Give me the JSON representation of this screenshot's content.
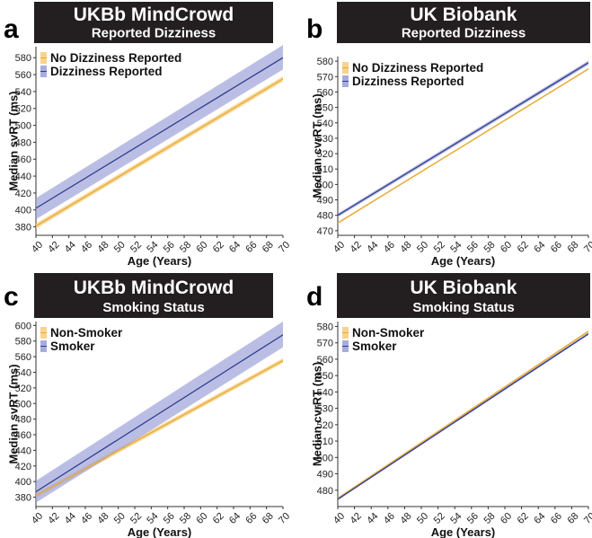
{
  "colors": {
    "yellow_band": "#f6cf7f",
    "yellow_line": "#e8a93a",
    "blue_band": "#9ea3d9",
    "blue_line": "#2f3f8f",
    "header_bg": "#231f20"
  },
  "chart_data": [
    {
      "panel": "a",
      "header_title": "UKBb MindCrowd",
      "header_subtitle": "Reported Dizziness",
      "type": "line",
      "xlabel": "Age (Years)",
      "ylabel": "Median svRT (ms)",
      "xlim": [
        40,
        70
      ],
      "ylim": [
        370,
        593
      ],
      "x_ticks": [
        40,
        42,
        44,
        46,
        48,
        50,
        52,
        54,
        56,
        58,
        60,
        62,
        64,
        66,
        68,
        70
      ],
      "y_ticks": [
        380,
        400,
        420,
        440,
        460,
        480,
        500,
        520,
        540,
        560,
        580
      ],
      "legend": [
        "No Dizziness Reported",
        "Dizziness Reported"
      ],
      "series": [
        {
          "name": "No Dizziness Reported",
          "x": [
            40,
            70
          ],
          "y": [
            381,
            555
          ],
          "lower": [
            378,
            552
          ],
          "upper": [
            384,
            558
          ]
        },
        {
          "name": "Dizziness Reported",
          "x": [
            40,
            70
          ],
          "y": [
            402,
            580
          ],
          "lower": [
            389,
            566
          ],
          "upper": [
            414,
            595
          ]
        }
      ]
    },
    {
      "panel": "b",
      "header_title": "UK Biobank",
      "header_subtitle": "Reported Dizziness",
      "type": "line",
      "xlabel": "Age (Years)",
      "ylabel": "Median cvrRT (ms)",
      "xlim": [
        40,
        70
      ],
      "ylim": [
        467,
        583
      ],
      "x_ticks": [
        40,
        42,
        44,
        46,
        48,
        50,
        52,
        54,
        56,
        58,
        60,
        62,
        64,
        66,
        68,
        70
      ],
      "y_ticks": [
        470,
        480,
        490,
        500,
        510,
        520,
        530,
        540,
        550,
        560,
        570,
        580
      ],
      "legend": [
        "No Dizziness Reported",
        "Dizziness Reported"
      ],
      "series": [
        {
          "name": "No Dizziness Reported",
          "x": [
            40,
            70
          ],
          "y": [
            475,
            575
          ],
          "lower": [
            474.4,
            574.4
          ],
          "upper": [
            475.6,
            575.6
          ]
        },
        {
          "name": "Dizziness Reported",
          "x": [
            40,
            70
          ],
          "y": [
            480,
            579
          ],
          "lower": [
            478.8,
            577.6
          ],
          "upper": [
            481.2,
            580.4
          ]
        }
      ]
    },
    {
      "panel": "c",
      "header_title": "UKBb MindCrowd",
      "header_subtitle": "Smoking Status",
      "type": "line",
      "xlabel": "Age (Years)",
      "ylabel": "Median svRT (ms)",
      "xlim": [
        40,
        70
      ],
      "ylim": [
        368,
        605
      ],
      "x_ticks": [
        40,
        42,
        44,
        46,
        48,
        50,
        52,
        54,
        56,
        58,
        60,
        62,
        64,
        66,
        68,
        70
      ],
      "y_ticks": [
        380,
        400,
        420,
        440,
        460,
        480,
        500,
        520,
        540,
        560,
        580,
        600
      ],
      "legend": [
        "Non-Smoker",
        "Smoker"
      ],
      "series": [
        {
          "name": "Non-Smoker",
          "x": [
            40,
            70
          ],
          "y": [
            382,
            555
          ],
          "lower": [
            379,
            552
          ],
          "upper": [
            385,
            558
          ]
        },
        {
          "name": "Smoker",
          "x": [
            40,
            70
          ],
          "y": [
            387,
            588
          ],
          "lower": [
            373,
            572
          ],
          "upper": [
            401,
            605
          ]
        }
      ]
    },
    {
      "panel": "d",
      "header_title": "UK Biobank",
      "header_subtitle": "Smoking Status",
      "type": "line",
      "xlabel": "Age (Years)",
      "ylabel": "Median cvrRT (ms)",
      "xlim": [
        40,
        70
      ],
      "ylim": [
        470,
        583
      ],
      "x_ticks": [
        40,
        42,
        44,
        46,
        48,
        50,
        52,
        54,
        56,
        58,
        60,
        62,
        64,
        66,
        68,
        70
      ],
      "y_ticks": [
        480,
        490,
        500,
        510,
        520,
        530,
        540,
        550,
        560,
        570,
        580
      ],
      "legend": [
        "Non-Smoker",
        "Smoker"
      ],
      "series": [
        {
          "name": "Non-Smoker",
          "x": [
            40,
            70
          ],
          "y": [
            475,
            577
          ],
          "lower": [
            474.3,
            576.3
          ],
          "upper": [
            475.7,
            577.7
          ]
        },
        {
          "name": "Smoker",
          "x": [
            40,
            70
          ],
          "y": [
            474.5,
            575.5
          ],
          "lower": [
            473.8,
            574.8
          ],
          "upper": [
            475.2,
            576.2
          ]
        }
      ]
    }
  ]
}
